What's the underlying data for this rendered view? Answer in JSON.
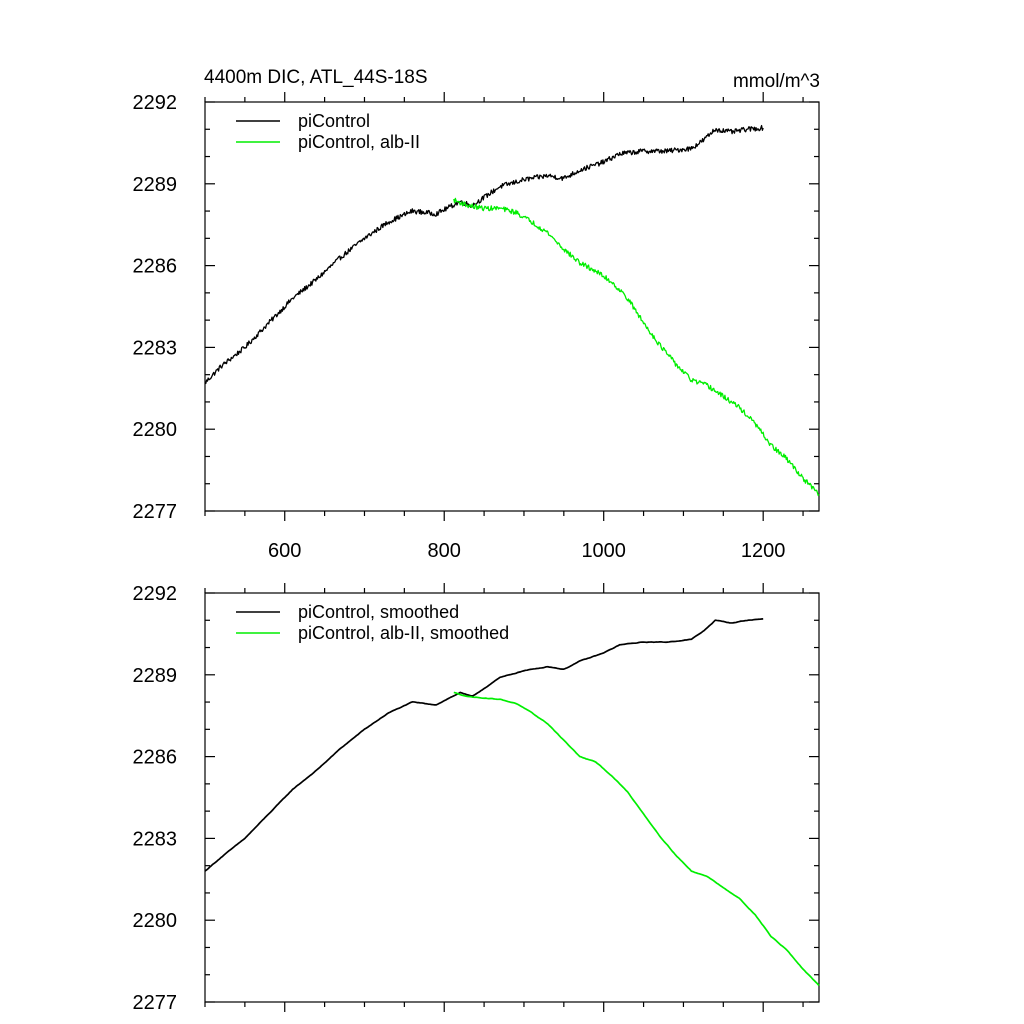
{
  "chart_data": [
    {
      "type": "line",
      "title": "4400m DIC, ATL_44S-18S",
      "units": "mmol/m^3",
      "xlim": [
        500,
        1270
      ],
      "ylim": [
        2277,
        2292
      ],
      "x_ticks": [
        600,
        800,
        1000,
        1200
      ],
      "x_minor_step": 50,
      "y_ticks": [
        2277,
        2280,
        2283,
        2286,
        2289,
        2292
      ],
      "y_minor_step": 1,
      "x_tick_labels_shown": true,
      "legend_position": "top-left",
      "series": [
        {
          "name": "piControl",
          "color": "#000000",
          "style": "noisy",
          "points": [
            [
              500,
              2281.7
            ],
            [
              520,
              2282.3
            ],
            [
              550,
              2283.0
            ],
            [
              580,
              2283.9
            ],
            [
              610,
              2284.8
            ],
            [
              640,
              2285.5
            ],
            [
              670,
              2286.3
            ],
            [
              700,
              2287.0
            ],
            [
              730,
              2287.6
            ],
            [
              760,
              2288.0
            ],
            [
              790,
              2287.9
            ],
            [
              810,
              2288.2
            ],
            [
              820,
              2288.35
            ],
            [
              835,
              2288.2
            ],
            [
              850,
              2288.5
            ],
            [
              870,
              2288.9
            ],
            [
              900,
              2289.15
            ],
            [
              930,
              2289.3
            ],
            [
              950,
              2289.2
            ],
            [
              970,
              2289.5
            ],
            [
              1000,
              2289.8
            ],
            [
              1020,
              2290.1
            ],
            [
              1050,
              2290.2
            ],
            [
              1080,
              2290.2
            ],
            [
              1110,
              2290.3
            ],
            [
              1125,
              2290.6
            ],
            [
              1140,
              2291.0
            ],
            [
              1160,
              2290.9
            ],
            [
              1180,
              2291.0
            ],
            [
              1200,
              2291.05
            ]
          ]
        },
        {
          "name": "piControl, alb-II",
          "color": "#00ee00",
          "style": "noisy",
          "points": [
            [
              812,
              2288.4
            ],
            [
              830,
              2288.2
            ],
            [
              850,
              2288.1
            ],
            [
              870,
              2288.1
            ],
            [
              890,
              2287.95
            ],
            [
              910,
              2287.6
            ],
            [
              930,
              2287.2
            ],
            [
              950,
              2286.6
            ],
            [
              970,
              2286.1
            ],
            [
              990,
              2285.8
            ],
            [
              1010,
              2285.4
            ],
            [
              1030,
              2284.8
            ],
            [
              1050,
              2283.9
            ],
            [
              1070,
              2283.1
            ],
            [
              1090,
              2282.4
            ],
            [
              1110,
              2281.8
            ],
            [
              1130,
              2281.6
            ],
            [
              1150,
              2281.2
            ],
            [
              1170,
              2280.8
            ],
            [
              1190,
              2280.2
            ],
            [
              1210,
              2279.4
            ],
            [
              1230,
              2278.9
            ],
            [
              1250,
              2278.2
            ],
            [
              1270,
              2277.6
            ]
          ]
        }
      ]
    },
    {
      "type": "line",
      "xlim": [
        500,
        1270
      ],
      "ylim": [
        2277,
        2292
      ],
      "x_ticks": [
        600,
        800,
        1000,
        1200
      ],
      "x_minor_step": 50,
      "y_ticks": [
        2277,
        2280,
        2283,
        2286,
        2289,
        2292
      ],
      "y_minor_step": 1,
      "x_tick_labels_shown": false,
      "legend_position": "top-left",
      "series": [
        {
          "name": "piControl, smoothed",
          "color": "#000000",
          "style": "smooth",
          "points": [
            [
              500,
              2281.8
            ],
            [
              520,
              2282.3
            ],
            [
              550,
              2283.0
            ],
            [
              580,
              2283.9
            ],
            [
              610,
              2284.8
            ],
            [
              640,
              2285.5
            ],
            [
              670,
              2286.3
            ],
            [
              700,
              2287.0
            ],
            [
              730,
              2287.6
            ],
            [
              760,
              2288.0
            ],
            [
              790,
              2287.9
            ],
            [
              810,
              2288.2
            ],
            [
              820,
              2288.35
            ],
            [
              835,
              2288.2
            ],
            [
              850,
              2288.5
            ],
            [
              870,
              2288.9
            ],
            [
              900,
              2289.15
            ],
            [
              930,
              2289.3
            ],
            [
              950,
              2289.2
            ],
            [
              970,
              2289.5
            ],
            [
              1000,
              2289.8
            ],
            [
              1020,
              2290.1
            ],
            [
              1050,
              2290.2
            ],
            [
              1080,
              2290.2
            ],
            [
              1110,
              2290.3
            ],
            [
              1125,
              2290.6
            ],
            [
              1140,
              2291.0
            ],
            [
              1160,
              2290.9
            ],
            [
              1180,
              2291.0
            ],
            [
              1200,
              2291.05
            ]
          ]
        },
        {
          "name": "piControl, alb-II, smoothed",
          "color": "#00ee00",
          "style": "smooth",
          "points": [
            [
              812,
              2288.35
            ],
            [
              830,
              2288.2
            ],
            [
              850,
              2288.15
            ],
            [
              870,
              2288.1
            ],
            [
              890,
              2287.95
            ],
            [
              910,
              2287.6
            ],
            [
              930,
              2287.2
            ],
            [
              950,
              2286.6
            ],
            [
              970,
              2286.0
            ],
            [
              990,
              2285.8
            ],
            [
              1010,
              2285.3
            ],
            [
              1030,
              2284.7
            ],
            [
              1050,
              2283.9
            ],
            [
              1070,
              2283.1
            ],
            [
              1090,
              2282.4
            ],
            [
              1110,
              2281.8
            ],
            [
              1130,
              2281.6
            ],
            [
              1150,
              2281.2
            ],
            [
              1170,
              2280.8
            ],
            [
              1190,
              2280.2
            ],
            [
              1210,
              2279.4
            ],
            [
              1230,
              2278.9
            ],
            [
              1250,
              2278.2
            ],
            [
              1270,
              2277.6
            ]
          ]
        }
      ]
    }
  ]
}
